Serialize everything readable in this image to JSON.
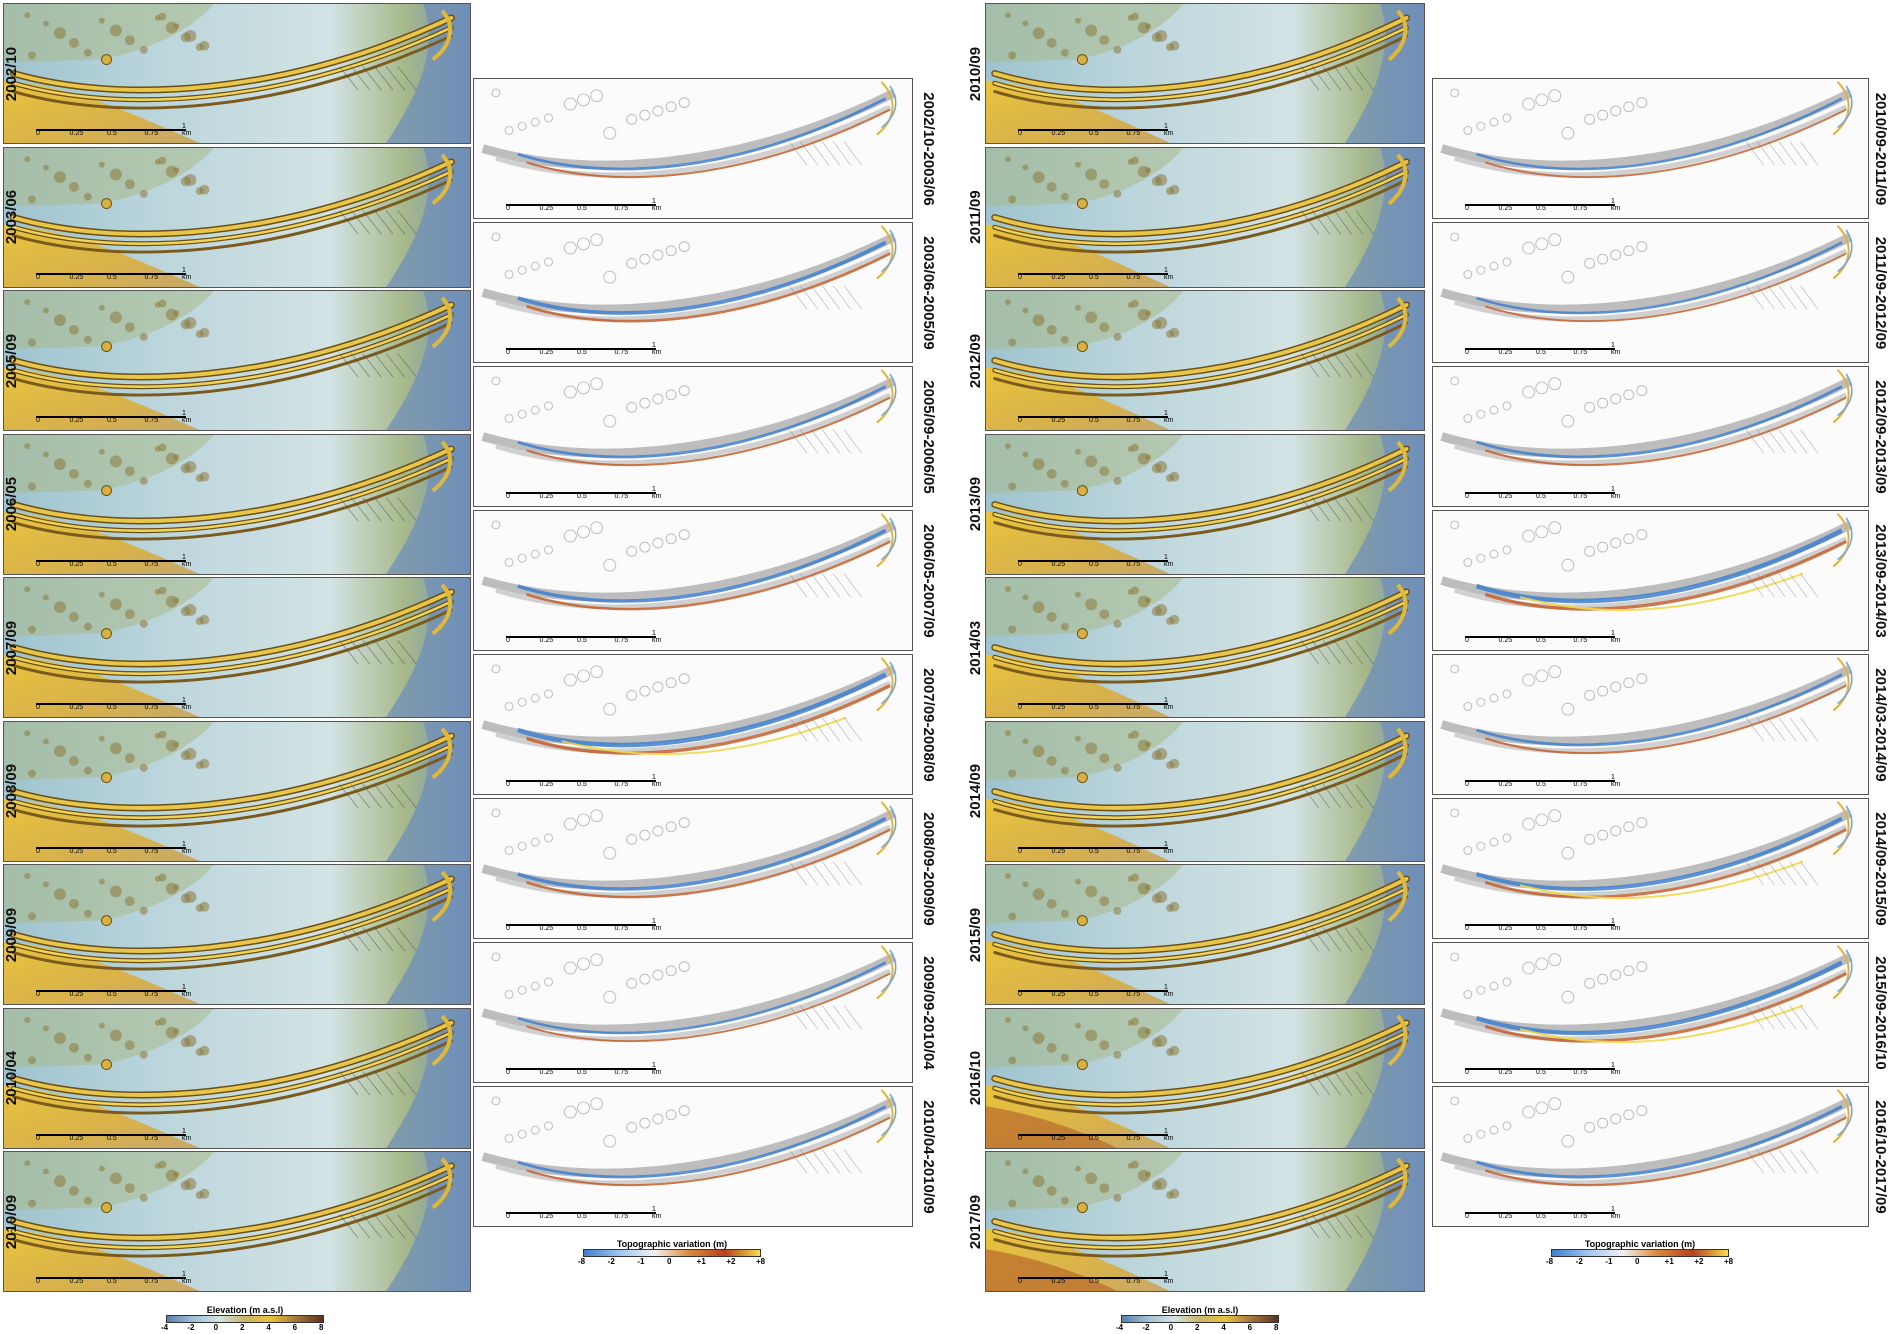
{
  "left": {
    "elevation_labels": [
      "2002/10",
      "2003/06",
      "2005/09",
      "2006/05",
      "2007/09",
      "2008/09",
      "2009/09",
      "2010/04",
      "2010/09"
    ],
    "variation_labels": [
      "2002/10-2003/06",
      "2003/06-2005/09",
      "2005/09-2006/05",
      "2006/05-2007/09",
      "2007/09-2008/09",
      "2008/09-2009/09",
      "2009/09-2010/04",
      "2010/04-2010/09"
    ],
    "elevation_legend": {
      "title": "Elevation (m a.s.l)",
      "ticks": [
        "-4",
        "-2",
        "0",
        "2",
        "4",
        "6",
        "8"
      ]
    },
    "variation_legend": {
      "title": "Topographic variation (m)",
      "ticks": [
        "-8",
        "-2",
        "-1",
        "0",
        "+1",
        "+2",
        "+8"
      ]
    }
  },
  "right": {
    "elevation_labels": [
      "2010/09",
      "2011/09",
      "2012/09",
      "2013/09",
      "2014/03",
      "2014/09",
      "2015/09",
      "2016/10",
      "2017/09"
    ],
    "variation_labels": [
      "2010/09-2011/09",
      "2011/09-2012/09",
      "2012/09-2013/09",
      "2013/09-2014/03",
      "2014/03-2014/09",
      "2014/09-2015/09",
      "2015/09-2016/10",
      "2016/10-2017/09"
    ],
    "elevation_legend": {
      "title": "Elevation (m a.s.l)",
      "ticks": [
        "-4",
        "-2",
        "0",
        "2",
        "4",
        "6",
        "8"
      ]
    },
    "variation_legend": {
      "title": "Topographic variation (m)",
      "ticks": [
        "-8",
        "-2",
        "-1",
        "0",
        "+1",
        "+2",
        "+8"
      ]
    }
  },
  "scale_bar": {
    "ticks": [
      "0",
      "0.25",
      "0.5",
      "0.75",
      "1 km"
    ]
  },
  "colors": {
    "elevation_ramp": [
      "#5b7fb0",
      "#9fc0d6",
      "#d3e4df",
      "#c9b56a",
      "#e9c23b",
      "#a2743a",
      "#5a3320"
    ],
    "variation_ramp": [
      "#3d7fcf",
      "#9fc4ef",
      "#f2f2f2",
      "#d9893a",
      "#b8401f",
      "#f4e04a"
    ],
    "water": "#bcd6df",
    "sand": "#e7bf3c"
  }
}
